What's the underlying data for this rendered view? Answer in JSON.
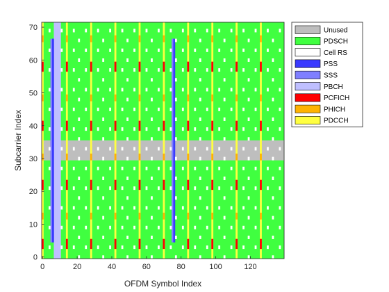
{
  "chart_data": {
    "type": "heatmap",
    "title": "",
    "xlabel": "OFDM Symbol Index",
    "ylabel": "Subcarrier Index",
    "xlim": [
      0,
      139
    ],
    "ylim": [
      0,
      71
    ],
    "xticks": [
      0,
      20,
      40,
      60,
      80,
      100,
      120
    ],
    "yticks": [
      0,
      10,
      20,
      30,
      40,
      50,
      60,
      70
    ],
    "legend_position": "outside-right-top",
    "legend": [
      {
        "name": "Unused",
        "color": "#bebebe"
      },
      {
        "name": "PDSCH",
        "color": "#40ff40"
      },
      {
        "name": "Cell RS",
        "color": "#ffffff"
      },
      {
        "name": "PSS",
        "color": "#3a3aff"
      },
      {
        "name": "SSS",
        "color": "#7f7fff"
      },
      {
        "name": "PBCH",
        "color": "#bfbfff"
      },
      {
        "name": "PCFICH",
        "color": "#ff0000"
      },
      {
        "name": "PHICH",
        "color": "#ffb300"
      },
      {
        "name": "PDCCH",
        "color": "#ffff40"
      }
    ],
    "subframe_period_symbols": 14,
    "control_symbols_per_subframe": 1,
    "pss_symbols": [
      6,
      76
    ],
    "sss_symbols": [
      5,
      75
    ],
    "pbch_symbols": [
      7,
      8,
      9,
      10
    ],
    "sync_subcarrier_range": [
      5,
      66
    ]
  }
}
